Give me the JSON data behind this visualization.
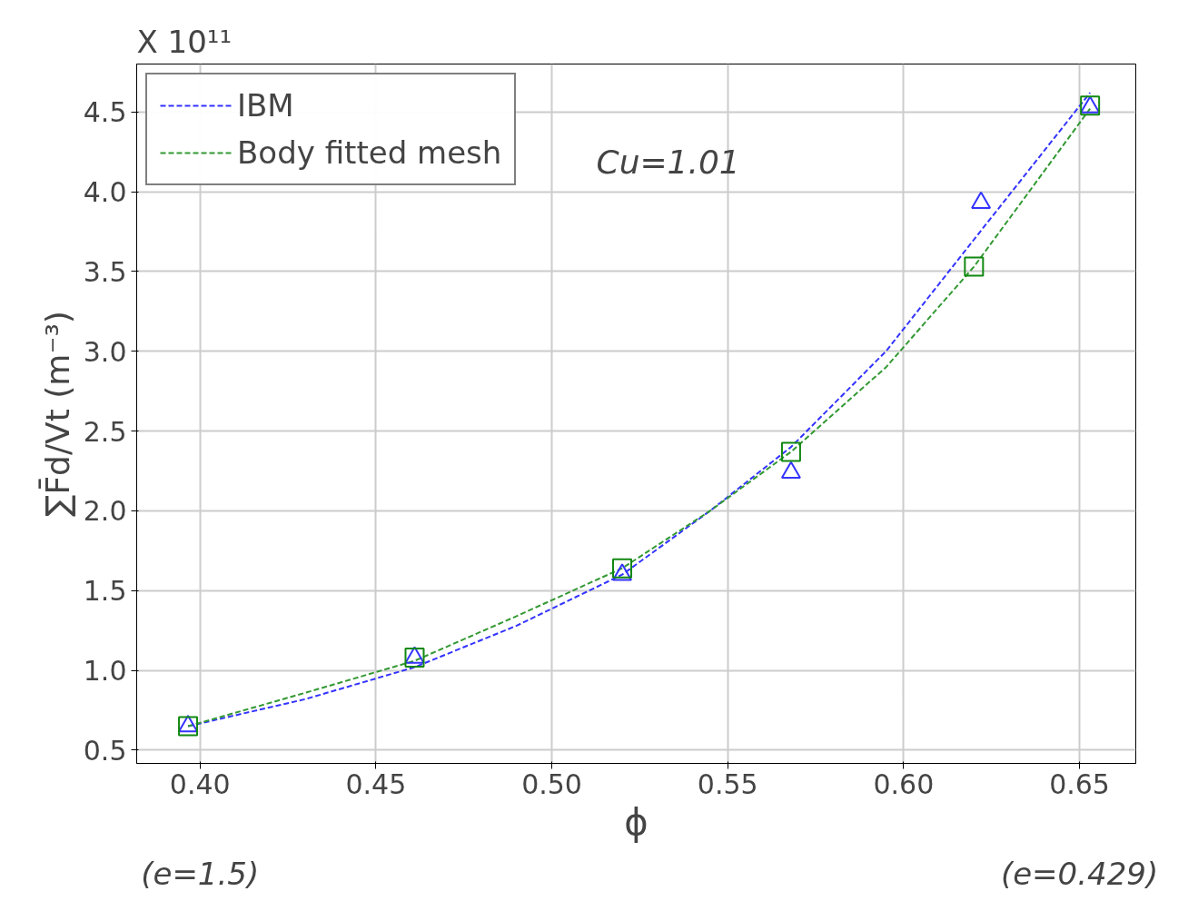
{
  "chart_data": {
    "type": "line",
    "xlabel": "ϕ",
    "ylabel": "∑F̄d/Vt (m⁻³)",
    "annotations": [
      "X 10¹¹",
      "Cu=1.01",
      "(e=1.5)",
      "(e=0.429)"
    ],
    "series": [
      {
        "name": "IBM",
        "color": "#3333ff",
        "line_style": "dashed",
        "marker": "none",
        "x": [
          0.3966,
          0.43,
          0.461,
          0.49,
          0.52,
          0.545,
          0.568,
          0.595,
          0.62,
          0.653
        ],
        "values": [
          0.65,
          0.82,
          1.02,
          1.28,
          1.6,
          2.0,
          2.4,
          3.0,
          3.7,
          4.62
        ]
      },
      {
        "name": "Body fitted mesh",
        "color": "#339933",
        "line_style": "dashed",
        "marker": "none",
        "x": [
          0.3966,
          0.43,
          0.461,
          0.49,
          0.52,
          0.545,
          0.568,
          0.595,
          0.62,
          0.653
        ],
        "values": [
          0.65,
          0.86,
          1.06,
          1.34,
          1.64,
          2.0,
          2.37,
          2.9,
          3.53,
          4.52
        ]
      },
      {
        "type": "scatter",
        "color": "#3333ff",
        "marker": "triangle",
        "x": [
          0.3966,
          0.461,
          0.52,
          0.568,
          0.622,
          0.653
        ],
        "values": [
          0.65,
          1.08,
          1.6,
          2.24,
          3.93,
          4.53
        ]
      },
      {
        "type": "scatter",
        "color": "#118811",
        "marker": "square",
        "x": [
          0.3966,
          0.461,
          0.52,
          0.568,
          0.62,
          0.653
        ],
        "values": [
          0.65,
          1.08,
          1.64,
          2.37,
          3.53,
          4.54
        ]
      }
    ],
    "xlim": [
      0.382,
      0.666
    ],
    "ylim": [
      0.417,
      4.8
    ],
    "xticks": [
      {
        "value": 0.4,
        "label": "0.40"
      },
      {
        "value": 0.45,
        "label": "0.45"
      },
      {
        "value": 0.5,
        "label": "0.50"
      },
      {
        "value": 0.55,
        "label": "0.55"
      },
      {
        "value": 0.6,
        "label": "0.60"
      },
      {
        "value": 0.65,
        "label": "0.65"
      }
    ],
    "yticks": [
      0.5,
      {
        "value": 1,
        "label": "1.0"
      },
      1.5,
      {
        "value": 2,
        "label": "2.0"
      },
      2.5,
      {
        "value": 3,
        "label": "3.0"
      },
      3.5,
      {
        "value": 4,
        "label": "4.0"
      },
      4.5
    ],
    "grid": true,
    "legend": "top left"
  }
}
